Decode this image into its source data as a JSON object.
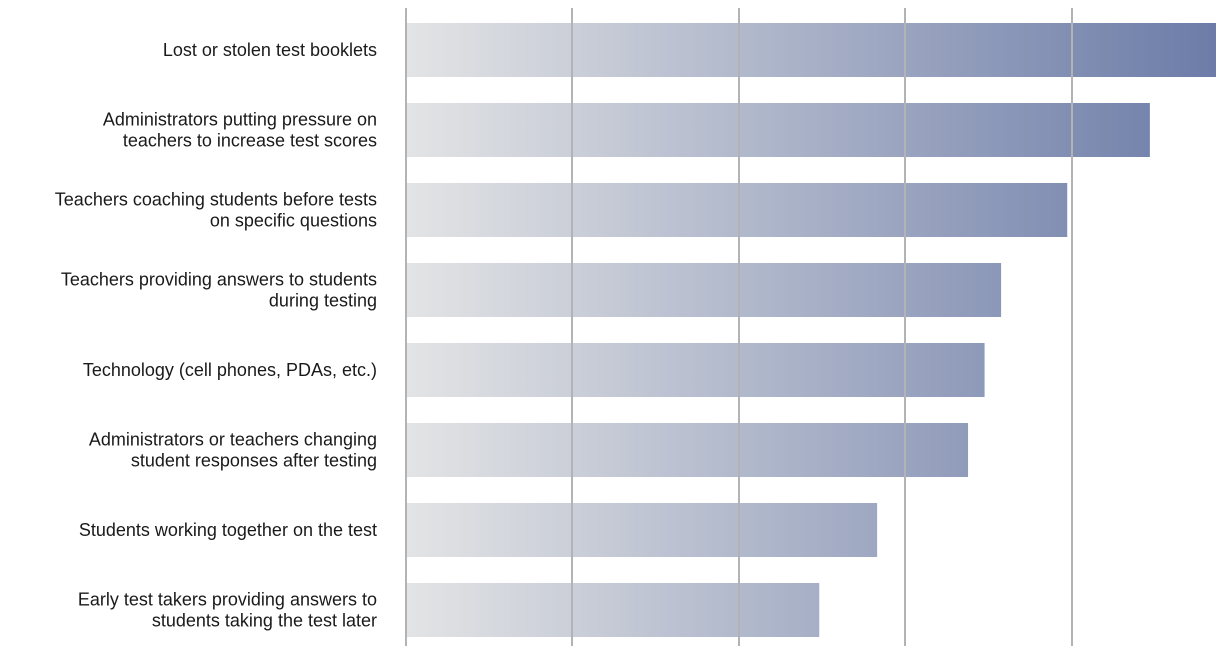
{
  "chart_data": {
    "type": "bar",
    "orientation": "horizontal",
    "categories": [
      [
        "Lost or stolen test booklets"
      ],
      [
        "Administrators putting pressure on",
        "teachers to increase test scores"
      ],
      [
        "Teachers coaching students before tests",
        "on specific questions"
      ],
      [
        "Teachers providing answers to students",
        "during testing"
      ],
      [
        "Technology (cell phones, PDAs, etc.)"
      ],
      [
        "Administrators or teachers changing",
        "student responses after testing"
      ],
      [
        "Students working together on the test"
      ],
      [
        "Early test takers providing answers to",
        "students taking the test later"
      ]
    ],
    "values": [
      4.9,
      4.5,
      4.0,
      3.6,
      3.5,
      3.4,
      2.85,
      2.5
    ],
    "xlim": [
      0,
      4.9
    ],
    "grid": true,
    "gradient_colors": [
      "#e3e4e5",
      "#6c7ca8"
    ],
    "grid_color": "#b3b3b3"
  }
}
